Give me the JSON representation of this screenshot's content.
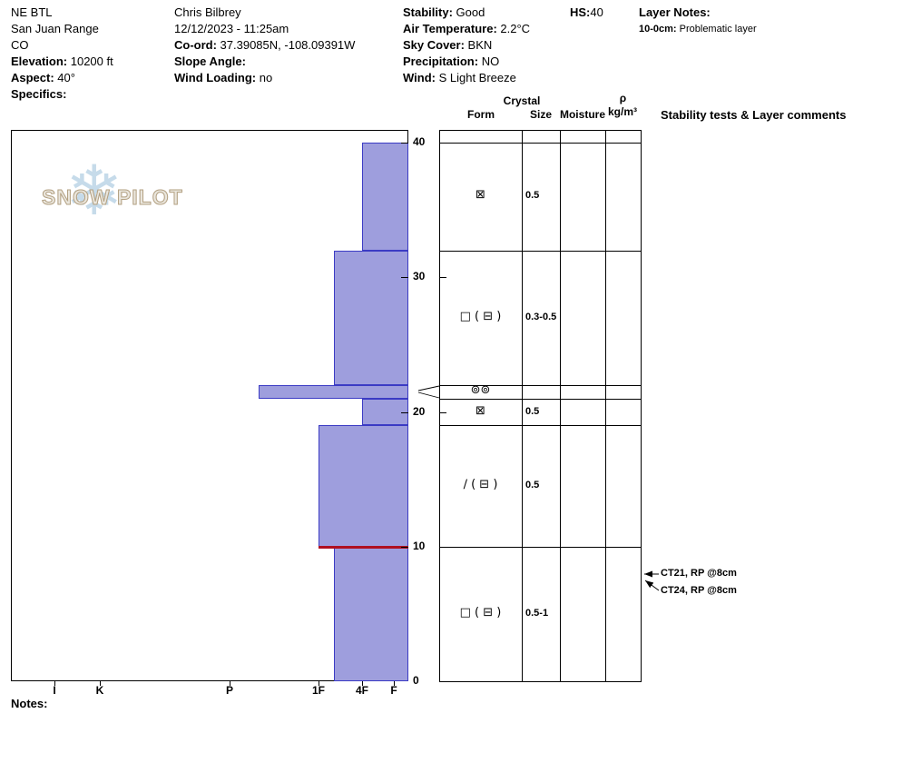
{
  "header": {
    "col1": [
      {
        "label": "",
        "value": "NE BTL"
      },
      {
        "label": "",
        "value": "San Juan Range"
      },
      {
        "label": "",
        "value": "CO"
      },
      {
        "label": "Elevation:",
        "value": " 10200 ft"
      },
      {
        "label": "Aspect:",
        "value": " 40°"
      },
      {
        "label": "Specifics:",
        "value": ""
      }
    ],
    "col2": [
      {
        "label": "",
        "value": "Chris Bilbrey"
      },
      {
        "label": "",
        "value": "12/12/2023 - 11:25am"
      },
      {
        "label": "Co-ord:",
        "value": " 37.39085N, -108.09391W"
      },
      {
        "label": "Slope Angle:",
        "value": ""
      },
      {
        "label": "Wind Loading:",
        "value": " no"
      }
    ],
    "col3": [
      {
        "label": "Stability:",
        "value": " Good"
      },
      {
        "label": "Air Temperature:",
        "value": " 2.2°C"
      },
      {
        "label": "Sky Cover:",
        "value": " BKN"
      },
      {
        "label": "Precipitation:",
        "value": " NO"
      },
      {
        "label": "Wind:",
        "value": " S Light Breeze"
      }
    ],
    "col4": {
      "label": "HS:",
      "value": "40"
    },
    "col5": {
      "title": "Layer Notes:",
      "note_label": "10-0cm:",
      "note_value": " Problematic layer"
    }
  },
  "logo": {
    "text": "SNOW PILOT",
    "snowflake": "❄"
  },
  "table": {
    "crystal_header": "Crystal",
    "form_header": "Form",
    "size_header": "Size",
    "moisture_header": "Moisture",
    "rho_header": "ρ",
    "rho_units": "kg/m³",
    "comments_header": "Stability tests & Layer comments"
  },
  "chart_data": {
    "type": "snow-profile-bar",
    "title": "Snow pit hardness profile",
    "depth_axis": {
      "unit": "cm",
      "max": 40,
      "ticks": [
        0,
        10,
        20,
        30,
        40
      ]
    },
    "hardness_axis": {
      "labels": [
        "I",
        "K",
        "P",
        "1F",
        "4F",
        "F"
      ]
    },
    "hs_total_depth_cm": 40,
    "layers": [
      {
        "top_cm": 40,
        "bottom_cm": 32,
        "hardness": "4F",
        "grain_form": "⊠",
        "grain_size_mm": "0.5",
        "moisture": "",
        "density": ""
      },
      {
        "top_cm": 32,
        "bottom_cm": 22,
        "hardness": "1F+",
        "grain_form": "□ ( ⊟ )",
        "grain_size_mm": "0.3-0.5",
        "moisture": "",
        "density": ""
      },
      {
        "top_cm": 22,
        "bottom_cm": 21,
        "hardness": "P+",
        "grain_form": "⊚⊚",
        "grain_size_mm": "",
        "moisture": "",
        "density": ""
      },
      {
        "top_cm": 21,
        "bottom_cm": 19,
        "hardness": "4F",
        "grain_form": "⊠",
        "grain_size_mm": "0.5",
        "moisture": "",
        "density": ""
      },
      {
        "top_cm": 19,
        "bottom_cm": 10,
        "hardness": "1F",
        "grain_form": "∕ ( ⊟ )",
        "grain_size_mm": "0.5",
        "moisture": "",
        "density": ""
      },
      {
        "top_cm": 10,
        "bottom_cm": 0,
        "hardness": "1F+",
        "grain_form": "□ ( ⊟ )",
        "grain_size_mm": "0.5-1",
        "moisture": "",
        "density": ""
      }
    ],
    "problem_layer_depth_cm": 10,
    "stability_tests": [
      "CT21, RP @8cm",
      "CT24, RP @8cm"
    ]
  },
  "notes_label": "Notes:",
  "colors": {
    "bar_fill": "#9e9edd",
    "bar_border": "#3b3bc4",
    "problem_line": "#b01020",
    "snowflake": "#c6dbea",
    "logo_text_outline": "#b3a183"
  }
}
